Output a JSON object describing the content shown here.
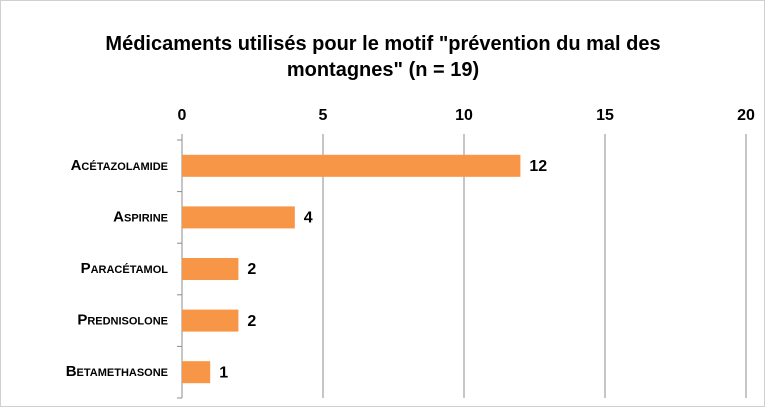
{
  "chart_data": {
    "type": "bar",
    "orientation": "horizontal",
    "title": "Médicaments utilisés pour le motif \"prévention du mal des montagnes\" (n = 19)",
    "categories": [
      "Acétazolamide",
      "Aspirine",
      "Paracétamol",
      "Prednisolone",
      "Betamethasone"
    ],
    "values": [
      12,
      4,
      2,
      2,
      1
    ],
    "color": "#f79646",
    "xlim": [
      0,
      20
    ],
    "xticks": [
      0,
      5,
      10,
      15,
      20
    ],
    "grid": true
  }
}
